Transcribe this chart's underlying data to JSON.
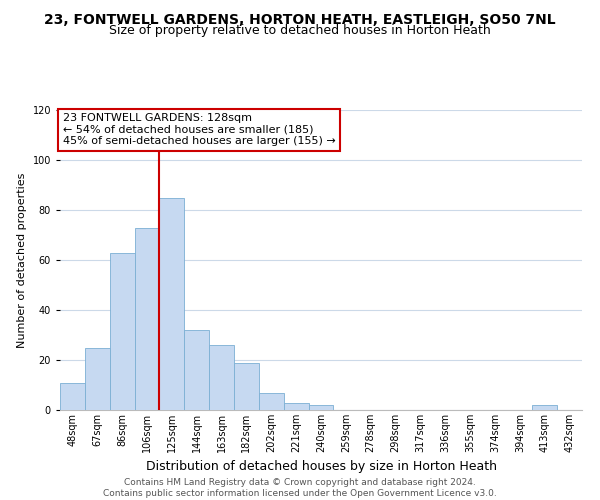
{
  "title": "23, FONTWELL GARDENS, HORTON HEATH, EASTLEIGH, SO50 7NL",
  "subtitle": "Size of property relative to detached houses in Horton Heath",
  "xlabel": "Distribution of detached houses by size in Horton Heath",
  "ylabel": "Number of detached properties",
  "bar_labels": [
    "48sqm",
    "67sqm",
    "86sqm",
    "106sqm",
    "125sqm",
    "144sqm",
    "163sqm",
    "182sqm",
    "202sqm",
    "221sqm",
    "240sqm",
    "259sqm",
    "278sqm",
    "298sqm",
    "317sqm",
    "336sqm",
    "355sqm",
    "374sqm",
    "394sqm",
    "413sqm",
    "432sqm"
  ],
  "bar_values": [
    11,
    25,
    63,
    73,
    85,
    32,
    26,
    19,
    7,
    3,
    2,
    0,
    0,
    0,
    0,
    0,
    0,
    0,
    0,
    2,
    0
  ],
  "bar_color": "#c6d9f1",
  "bar_edge_color": "#7bafd4",
  "vline_x": 4.0,
  "vline_color": "#cc0000",
  "ylim": [
    0,
    120
  ],
  "yticks": [
    0,
    20,
    40,
    60,
    80,
    100,
    120
  ],
  "annotation_line1": "23 FONTWELL GARDENS: 128sqm",
  "annotation_line2": "← 54% of detached houses are smaller (185)",
  "annotation_line3": "45% of semi-detached houses are larger (155) →",
  "footer_line1": "Contains HM Land Registry data © Crown copyright and database right 2024.",
  "footer_line2": "Contains public sector information licensed under the Open Government Licence v3.0.",
  "title_fontsize": 10,
  "subtitle_fontsize": 9,
  "xlabel_fontsize": 9,
  "ylabel_fontsize": 8,
  "tick_fontsize": 7,
  "annot_fontsize": 8,
  "footer_fontsize": 6.5,
  "background_color": "#ffffff",
  "grid_color": "#ccd9e8"
}
